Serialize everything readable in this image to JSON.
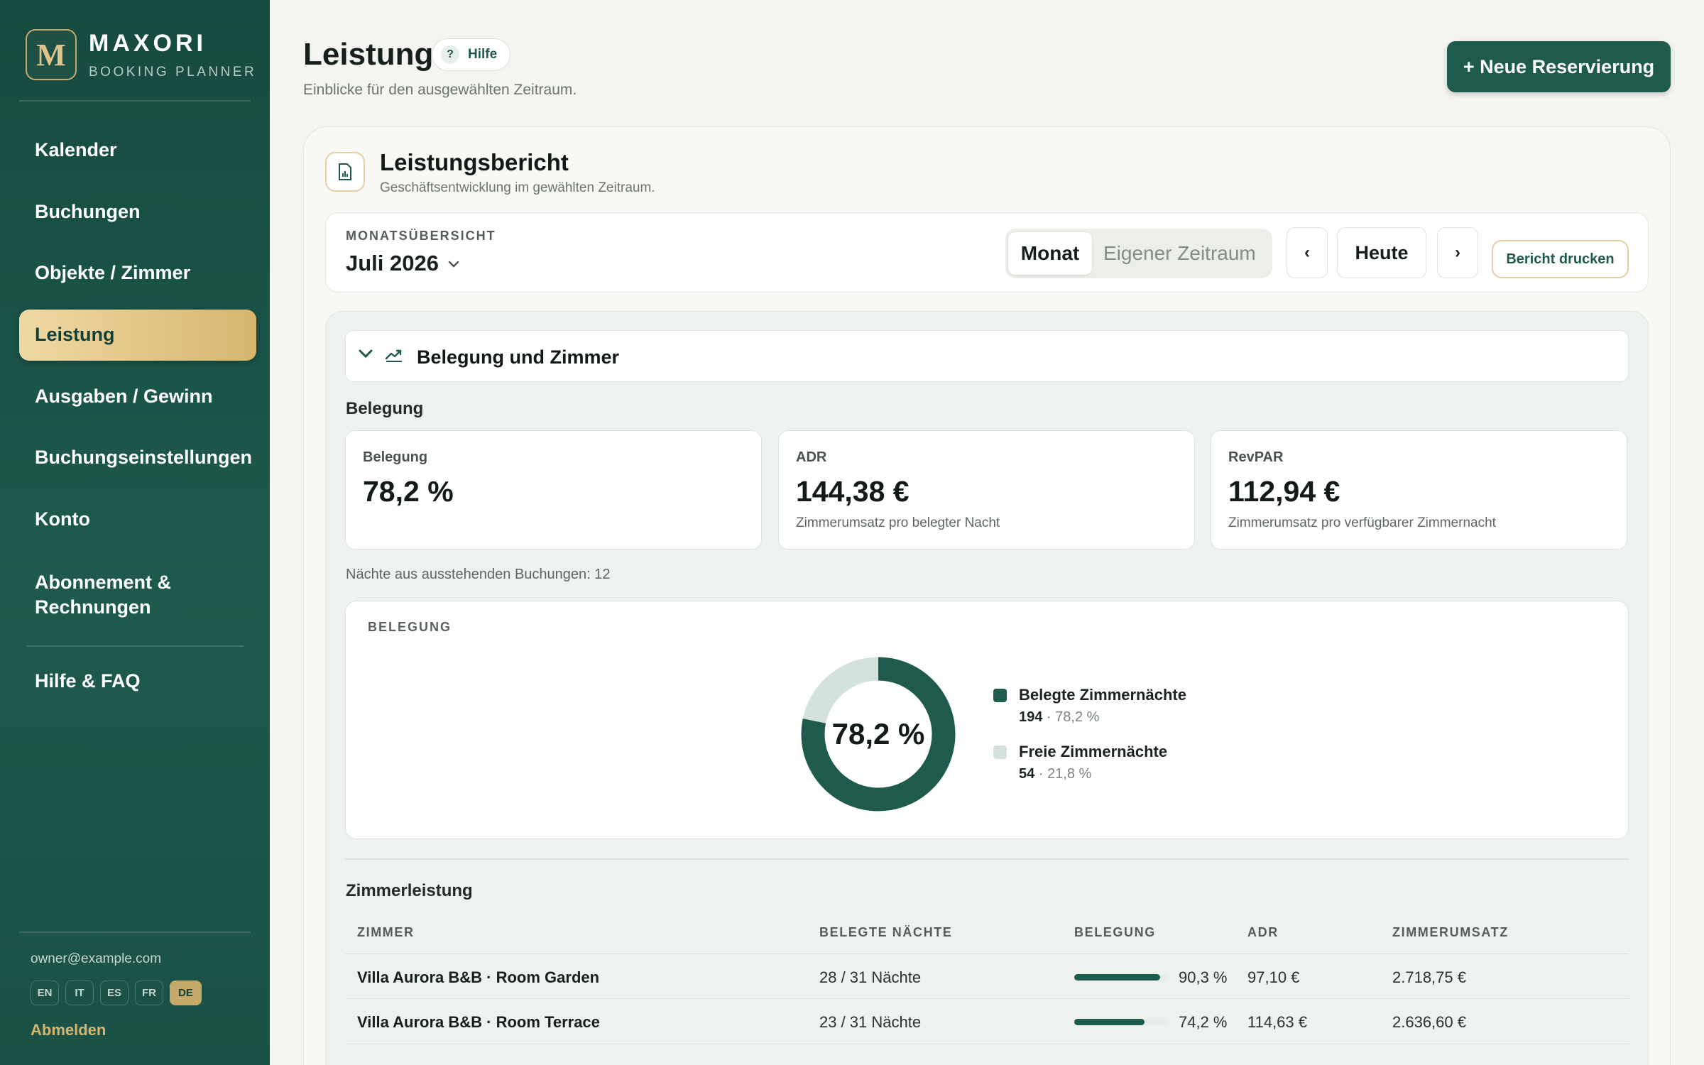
{
  "sidebar": {
    "logo_letter": "M",
    "brand": "MAXORI",
    "brand_sub": "BOOKING PLANNER",
    "items": [
      {
        "label": "Kalender"
      },
      {
        "label": "Buchungen"
      },
      {
        "label": "Objekte / Zimmer"
      },
      {
        "label": "Leistung",
        "active": true
      },
      {
        "label": "Ausgaben / Gewinn"
      },
      {
        "label": "Buchungseinstellungen"
      },
      {
        "label": "Konto"
      },
      {
        "label": "Abonnement & Rechnungen"
      },
      {
        "label": "Hilfe & FAQ"
      }
    ],
    "email": "owner@example.com",
    "languages": [
      "EN",
      "IT",
      "ES",
      "FR",
      "DE"
    ],
    "active_language": "DE",
    "logout": "Abmelden"
  },
  "header": {
    "title": "Leistung",
    "help_icon": "?",
    "help_label": "Hilfe",
    "subtitle": "Einblicke für den ausgewählten Zeitraum.",
    "new_button": "+ Neue Reservierung"
  },
  "report": {
    "icon": "report-chart-icon",
    "title": "Leistungsbericht",
    "subtitle": "Geschäftsentwicklung im gewählten Zeitraum."
  },
  "toolbar": {
    "month_label": "MONATSÜBERSICHT",
    "month_value": "Juli 2026",
    "mode_month": "Monat",
    "mode_custom": "Eigener Zeitraum",
    "prev": "‹",
    "today": "Heute",
    "next": "›",
    "print": "Bericht drucken"
  },
  "occupancy_section": {
    "title": "Belegung und Zimmer",
    "subheading": "Belegung",
    "kpis": [
      {
        "label": "Belegung",
        "value": "78,2 %",
        "note": ""
      },
      {
        "label": "ADR",
        "value": "144,38 €",
        "note": "Zimmerumsatz pro belegter Nacht"
      },
      {
        "label": "RevPAR",
        "value": "112,94 €",
        "note": "Zimmerumsatz pro verfügbarer Zimmernacht"
      }
    ],
    "pending_nights": "Nächte aus ausstehenden Buchungen: 12",
    "donut_label": "BELEGUNG",
    "donut_center": "78,2 %",
    "legend": [
      {
        "name": "Belegte Zimmernächte",
        "count": "194",
        "percent": "78,2 %",
        "color": "#1f5b4d"
      },
      {
        "name": "Freie Zimmernächte",
        "count": "54",
        "percent": "21,8 %",
        "color": "#d3e2dd"
      }
    ]
  },
  "chart_data": {
    "type": "pie",
    "categories": [
      "Belegte Zimmernächte",
      "Freie Zimmernächte"
    ],
    "values": [
      194,
      54
    ],
    "percentages": [
      78.2,
      21.8
    ],
    "title": "BELEGUNG",
    "center_label": "78,2 %",
    "colors": [
      "#1f5b4d",
      "#d3e2dd"
    ]
  },
  "rooms": {
    "heading": "Zimmerleistung",
    "columns": [
      "ZIMMER",
      "BELEGTE NÄCHTE",
      "BELEGUNG",
      "ADR",
      "ZIMMERUMSATZ"
    ],
    "rows": [
      {
        "room": "Villa Aurora B&B · Room Garden",
        "nights": "28 / 31 Nächte",
        "occupancy": "90,3 %",
        "occupancy_value": 0.903,
        "adr": "97,10 €",
        "revenue": "2.718,75 €"
      },
      {
        "room": "Villa Aurora B&B · Room Terrace",
        "nights": "23 / 31 Nächte",
        "occupancy": "74,2 %",
        "occupancy_value": 0.742,
        "adr": "114,63 €",
        "revenue": "2.636,60 €"
      }
    ]
  }
}
